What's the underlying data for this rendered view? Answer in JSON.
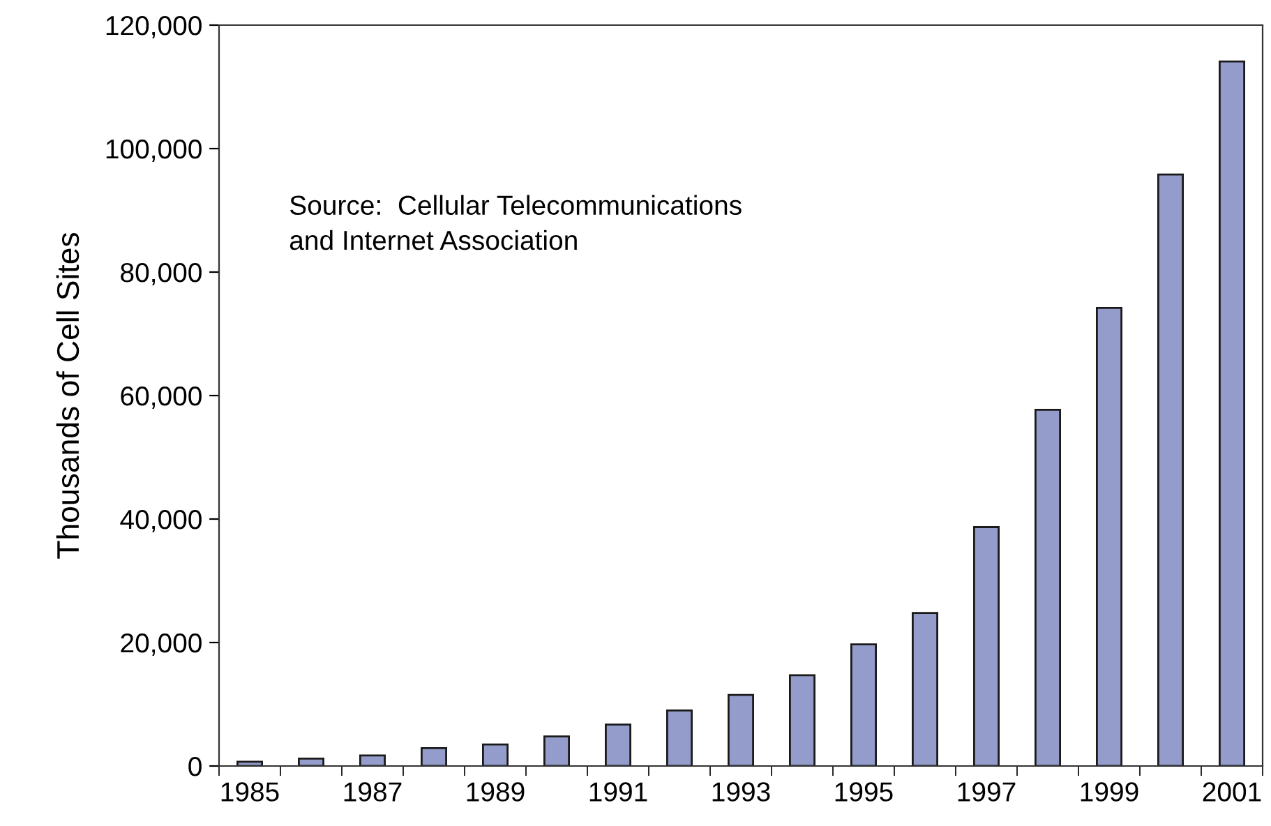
{
  "chart_data": {
    "type": "bar",
    "ylabel": "Thousands of Cell Sites",
    "categories": [
      "1985",
      null,
      "1987",
      null,
      "1989",
      null,
      "1991",
      null,
      "1993",
      null,
      "1995",
      null,
      "1997",
      null,
      "1999",
      null,
      "2001"
    ],
    "values": [
      700,
      1200,
      1700,
      2900,
      3500,
      4800,
      6700,
      9000,
      11500,
      14700,
      19700,
      24800,
      38700,
      57700,
      74200,
      95800,
      114100
    ],
    "color": "#939cca",
    "ylim": [
      0,
      120000
    ],
    "yticks": [
      {
        "value": 0,
        "label": "0"
      },
      {
        "value": 20000,
        "label": "20,000"
      },
      {
        "value": 40000,
        "label": "40,000"
      },
      {
        "value": 60000,
        "label": "60,000"
      },
      {
        "value": 80000,
        "label": "80,000"
      },
      {
        "value": 100000,
        "label": "100,000"
      },
      {
        "value": 120000,
        "label": "120,000"
      }
    ],
    "grid": false,
    "annotations": [
      "Source:  Cellular Telecommunications\nand Internet Association"
    ]
  }
}
